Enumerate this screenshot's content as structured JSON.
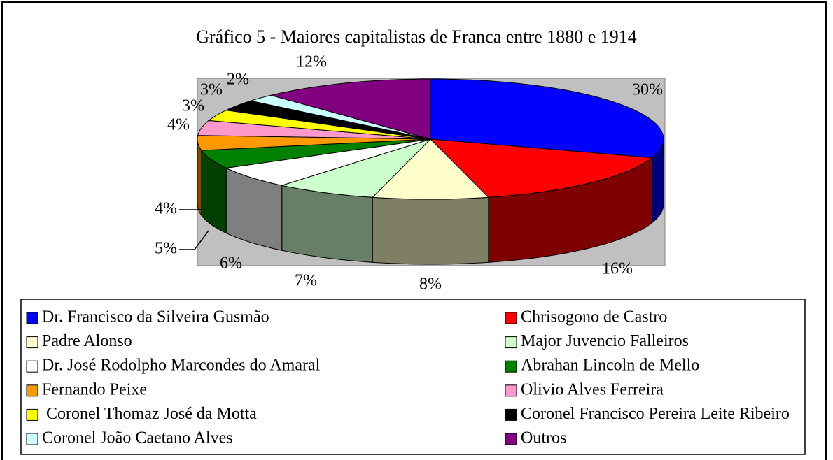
{
  "chart_data": {
    "type": "pie",
    "title": "Gráfico 5 - Maiores capitalistas de Franca entre 1880 e 1914",
    "categories": [
      "Dr. Francisco da Silveira Gusmão",
      "Chrisogono de Castro",
      "Padre Alonso",
      "Major Juvencio Falleiros",
      "Dr. José Rodolpho Marcondes do Amaral",
      "Abrahan Lincoln de Mello",
      "Fernando Peixe",
      "Olivio Alves Ferreira",
      " Coronel Thomaz José da Motta",
      "Coronel Francisco Pereira Leite Ribeiro",
      "Coronel João Caetano Alves",
      "Outros"
    ],
    "values": [
      30,
      16,
      8,
      7,
      6,
      5,
      4,
      4,
      3,
      3,
      2,
      12
    ],
    "value_labels": [
      "30%",
      "16%",
      "8%",
      "7%",
      "6%",
      "5%",
      "4%",
      "4%",
      "3%",
      "3%",
      "2%",
      "12%"
    ],
    "colors": [
      "#0000ff",
      "#ff0000",
      "#ffffcc",
      "#ccffcc",
      "#ffffff",
      "#008000",
      "#ff9900",
      "#ff99cc",
      "#ffff00",
      "#000000",
      "#ccffff",
      "#800080"
    ]
  }
}
